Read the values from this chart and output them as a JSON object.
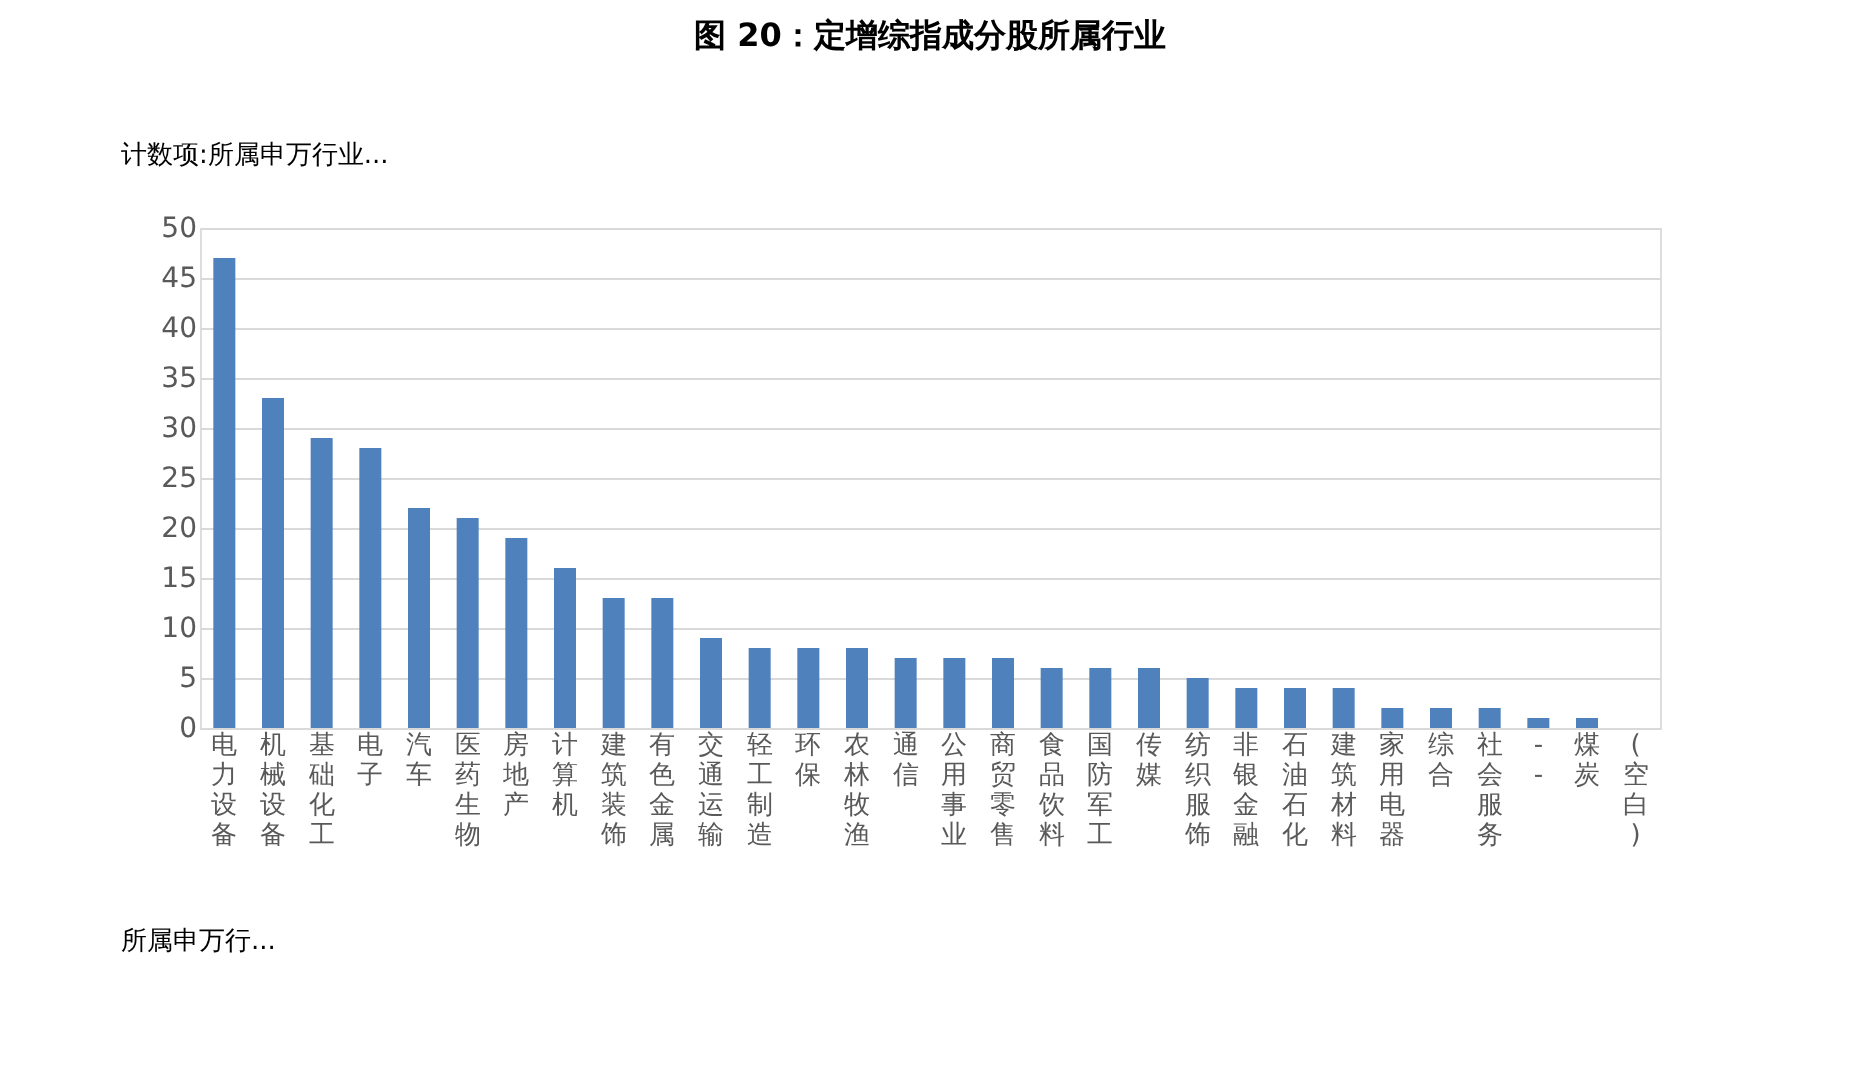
{
  "chart_data": {
    "type": "bar",
    "title": "图 20：定增综指成分股所属行业",
    "ylabel": "计数项:所属申万行业...",
    "xlabel": "所属申万行...",
    "categories": [
      "电力设备",
      "机械设备",
      "基础化工",
      "电子",
      "汽车",
      "医药生物",
      "房地产",
      "计算机",
      "建筑装饰",
      "有色金属",
      "交通运输",
      "轻工制造",
      "环保",
      "农林牧渔",
      "通信",
      "公用事业",
      "商贸零售",
      "食品饮料",
      "国防军工",
      "传媒",
      "纺织服饰",
      "非银金融",
      "石油石化",
      "建筑材料",
      "家用电器",
      "综合",
      "社会服务",
      "--",
      "煤炭",
      "(空白)"
    ],
    "values": [
      47,
      33,
      29,
      28,
      22,
      21,
      19,
      16,
      13,
      13,
      9,
      8,
      8,
      8,
      7,
      7,
      7,
      6,
      6,
      6,
      5,
      4,
      4,
      4,
      2,
      2,
      2,
      1,
      1,
      null
    ],
    "color": "#4f81bd",
    "ylim": [
      0,
      50
    ],
    "yticks": [
      0,
      5,
      10,
      15,
      20,
      25,
      30,
      35,
      40,
      45,
      50
    ],
    "grid": "y"
  }
}
